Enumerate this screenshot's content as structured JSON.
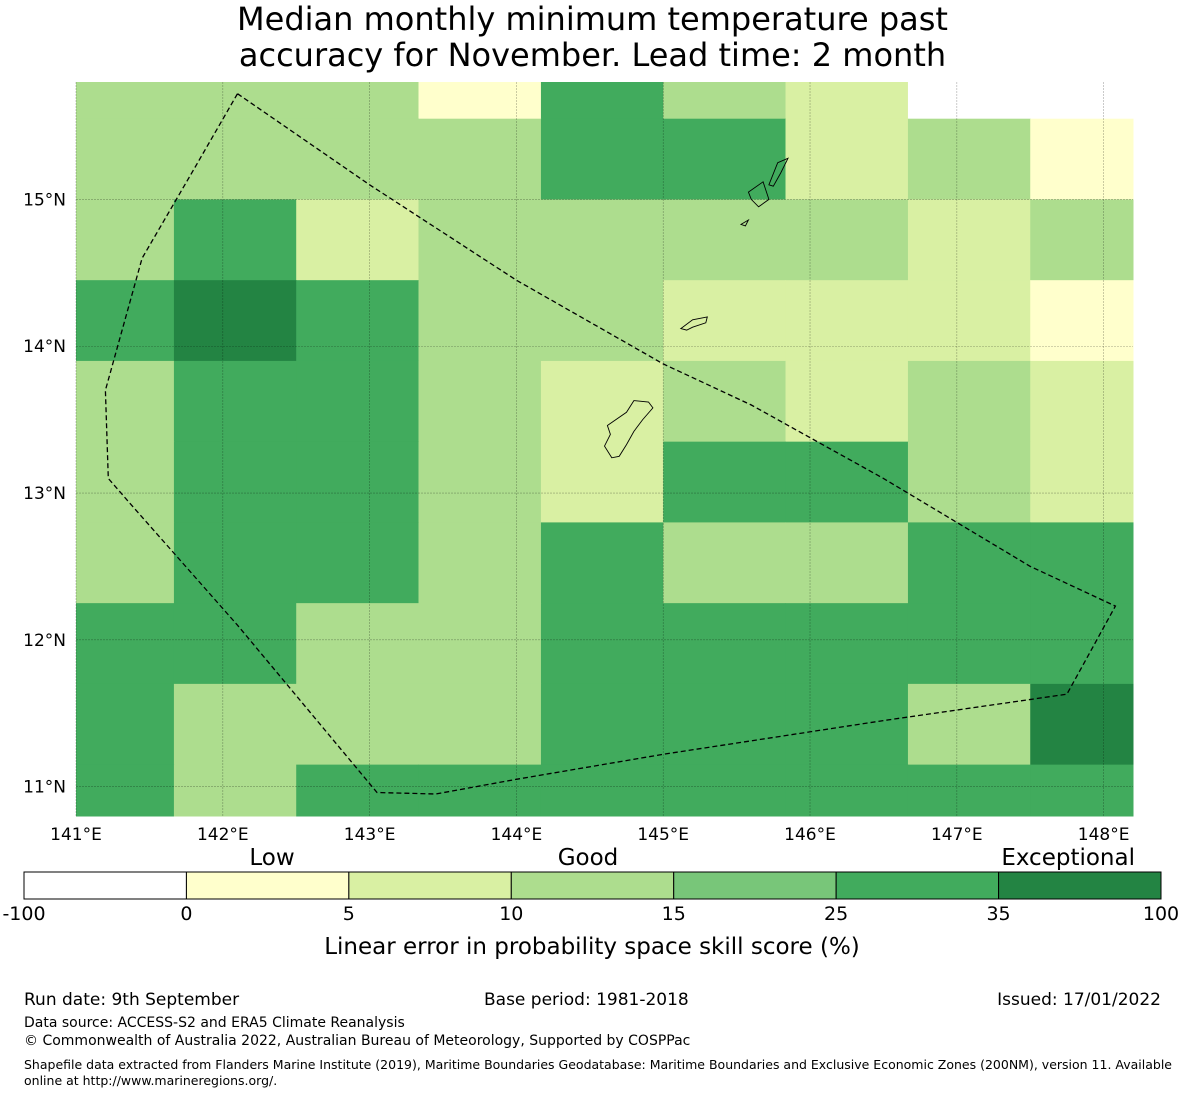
{
  "title_line1": "Median monthly minimum temperature past",
  "title_line2": "accuracy for November. Lead time: 2 month",
  "chart_data": {
    "type": "heatmap",
    "title": "Median monthly minimum temperature past accuracy for November. Lead time: 2 month",
    "x_ticks": [
      "141°E",
      "142°E",
      "143°E",
      "144°E",
      "145°E",
      "146°E",
      "147°E",
      "148°E"
    ],
    "x_tick_values": [
      141,
      142,
      143,
      144,
      145,
      146,
      147,
      148
    ],
    "y_ticks": [
      "11°N",
      "12°N",
      "13°N",
      "14°N",
      "15°N"
    ],
    "y_tick_values": [
      11,
      12,
      13,
      14,
      15
    ],
    "xlim": [
      141.0,
      148.2
    ],
    "ylim": [
      10.8,
      15.8
    ],
    "grid": true,
    "lon_edges": [
      141.0,
      141.667,
      142.5,
      143.333,
      144.167,
      145.0,
      145.833,
      146.667,
      147.5,
      148.2
    ],
    "lat_edges": [
      15.8,
      15.55,
      15.0,
      14.45,
      13.9,
      13.35,
      12.8,
      12.25,
      11.7,
      11.15,
      10.8
    ],
    "cell_categories": [
      [
        3,
        3,
        3,
        1,
        5,
        3,
        2,
        0,
        0
      ],
      [
        3,
        3,
        3,
        3,
        5,
        5,
        2,
        3,
        1
      ],
      [
        3,
        5,
        2,
        3,
        3,
        3,
        3,
        2,
        3
      ],
      [
        5,
        6,
        5,
        3,
        3,
        2,
        2,
        2,
        1
      ],
      [
        3,
        5,
        5,
        3,
        2,
        3,
        2,
        3,
        2
      ],
      [
        3,
        5,
        5,
        3,
        2,
        5,
        5,
        3,
        2
      ],
      [
        3,
        5,
        5,
        3,
        5,
        3,
        3,
        5,
        5
      ],
      [
        5,
        5,
        3,
        3,
        5,
        5,
        5,
        5,
        5
      ],
      [
        5,
        3,
        3,
        3,
        5,
        5,
        5,
        3,
        6
      ],
      [
        5,
        3,
        5,
        5,
        5,
        5,
        5,
        5,
        5
      ]
    ],
    "eez_boundary": [
      [
        142.1,
        15.72
      ],
      [
        143.0,
        15.1
      ],
      [
        144.0,
        14.45
      ],
      [
        145.0,
        13.88
      ],
      [
        145.6,
        13.6
      ],
      [
        146.5,
        13.1
      ],
      [
        147.5,
        12.5
      ],
      [
        148.08,
        12.23
      ],
      [
        147.75,
        11.63
      ],
      [
        146.5,
        11.45
      ],
      [
        145.0,
        11.22
      ],
      [
        144.0,
        11.05
      ],
      [
        143.45,
        10.95
      ],
      [
        143.05,
        10.96
      ],
      [
        142.1,
        12.1
      ],
      [
        141.35,
        12.95
      ],
      [
        141.22,
        13.1
      ],
      [
        141.2,
        13.7
      ],
      [
        141.45,
        14.6
      ],
      [
        141.8,
        15.2
      ],
      [
        142.1,
        15.72
      ]
    ],
    "islands": [
      [
        [
          144.62,
          13.46
        ],
        [
          144.75,
          13.55
        ],
        [
          144.8,
          13.63
        ],
        [
          144.9,
          13.62
        ],
        [
          144.93,
          13.58
        ],
        [
          144.86,
          13.5
        ],
        [
          144.8,
          13.42
        ],
        [
          144.75,
          13.33
        ],
        [
          144.7,
          13.25
        ],
        [
          144.65,
          13.24
        ],
        [
          144.6,
          13.32
        ],
        [
          144.64,
          13.4
        ],
        [
          144.62,
          13.46
        ]
      ],
      [
        [
          145.12,
          14.12
        ],
        [
          145.2,
          14.18
        ],
        [
          145.3,
          14.2
        ],
        [
          145.29,
          14.16
        ],
        [
          145.2,
          14.13
        ],
        [
          145.16,
          14.11
        ],
        [
          145.12,
          14.12
        ]
      ],
      [
        [
          145.58,
          15.05
        ],
        [
          145.68,
          15.12
        ],
        [
          145.72,
          15.0
        ],
        [
          145.65,
          14.95
        ],
        [
          145.6,
          15.0
        ],
        [
          145.58,
          15.05
        ]
      ],
      [
        [
          145.72,
          15.1
        ],
        [
          145.78,
          15.25
        ],
        [
          145.85,
          15.28
        ],
        [
          145.8,
          15.18
        ],
        [
          145.75,
          15.09
        ],
        [
          145.72,
          15.1
        ]
      ],
      [
        [
          145.53,
          14.83
        ],
        [
          145.58,
          14.86
        ],
        [
          145.56,
          14.82
        ],
        [
          145.53,
          14.83
        ]
      ]
    ],
    "colorbar": {
      "label": "Linear error in probability space skill score (%)",
      "tick_labels": [
        "-100",
        "0",
        "5",
        "10",
        "15",
        "25",
        "35",
        "100"
      ],
      "colors": [
        "#ffffff",
        "#ffffcc",
        "#d9f0a3",
        "#addd8e",
        "#78c679",
        "#41ab5d",
        "#238443"
      ],
      "category_labels": [
        "Low",
        "Good",
        "Exceptional"
      ]
    }
  },
  "footer": {
    "run_date": "Run date: 9th September",
    "base_period": "Base period: 1981-2018",
    "issued": "Issued: 17/01/2022",
    "data_source": "Data source: ACCESS-S2 and ERA5 Climate Reanalysis",
    "copyright": "© Commonwealth of Australia 2022, Australian Bureau of Meteorology, Supported by COSPPac",
    "shapefile": "Shapefile data extracted from Flanders Marine Institute (2019), Maritime Boundaries Geodatabase: Maritime Boundaries and Exclusive Economic Zones (200NM), version 11. Available online at http://www.marineregions.org/."
  }
}
